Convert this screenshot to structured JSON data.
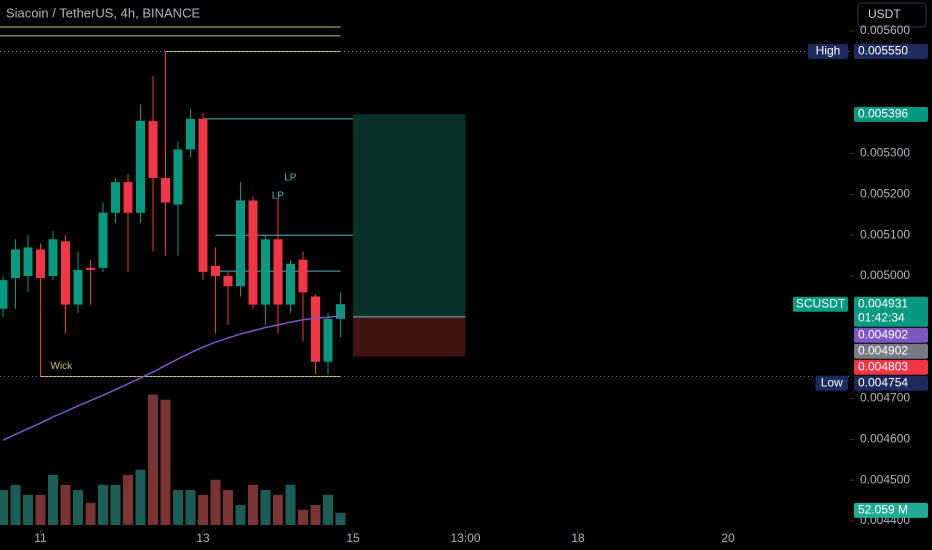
{
  "chart_data": {
    "type": "candlestick",
    "title": "Siacoin / TetherUS, 4h, BINANCE",
    "currency": "USDT",
    "x": [
      0,
      1,
      2,
      3,
      4,
      5,
      6,
      7,
      8,
      9,
      10,
      11,
      12,
      13,
      14,
      15,
      16,
      17,
      18,
      19,
      20,
      21,
      22,
      23,
      24,
      25,
      26,
      27
    ],
    "open": [
      0.00492,
      0.004995,
      0.005,
      0.005065,
      0.005,
      0.005085,
      0.00493,
      0.00502,
      0.00502,
      0.005155,
      0.00523,
      0.005155,
      0.00538,
      0.00524,
      0.005175,
      0.00531,
      0.005385,
      0.005025,
      0.005,
      0.004975,
      0.005185,
      0.00493,
      0.00509,
      0.00493,
      0.00504,
      0.00495,
      0.00479,
      0.004895
    ],
    "high": [
      0.005,
      0.00509,
      0.0051,
      0.00508,
      0.00511,
      0.0051,
      0.00506,
      0.00504,
      0.00518,
      0.00524,
      0.00525,
      0.00542,
      0.00549,
      0.00555,
      0.00533,
      0.00541,
      0.0054,
      0.00507,
      0.00501,
      0.00523,
      0.005195,
      0.0051,
      0.00519,
      0.00504,
      0.00506,
      0.004955,
      0.00491,
      0.00496
    ],
    "low": [
      0.0049,
      0.00492,
      0.00496,
      0.004754,
      0.00499,
      0.00486,
      0.00491,
      0.00493,
      0.00501,
      0.00513,
      0.00501,
      0.00513,
      0.00506,
      0.00505,
      0.00505,
      0.00529,
      0.00499,
      0.00486,
      0.00488,
      0.00495,
      0.00492,
      0.00488,
      0.00486,
      0.00491,
      0.00484,
      0.00476,
      0.00476,
      0.00485
    ],
    "close": [
      0.00499,
      0.005065,
      0.00507,
      0.004995,
      0.00509,
      0.00493,
      0.005015,
      0.005015,
      0.005155,
      0.00523,
      0.005155,
      0.00538,
      0.00524,
      0.00518,
      0.00531,
      0.005385,
      0.00501,
      0.005,
      0.004975,
      0.005185,
      0.00493,
      0.00509,
      0.00493,
      0.00503,
      0.00496,
      0.00479,
      0.004895,
      0.004931
    ],
    "up_color": "#089981",
    "down_color": "#f23645",
    "ma": {
      "color": "#7e57c2",
      "values": [
        0.004598,
        0.004612,
        0.004626,
        0.00464,
        0.004655,
        0.004668,
        0.004682,
        0.004695,
        0.004708,
        0.004722,
        0.004736,
        0.00475,
        0.004765,
        0.004781,
        0.004797,
        0.004812,
        0.004826,
        0.004838,
        0.004848,
        0.004858,
        0.004866,
        0.004874,
        0.00488,
        0.004887,
        0.004893,
        0.004897,
        0.004899,
        0.004902
      ]
    },
    "volume": {
      "values": [
        150,
        172,
        129,
        129,
        215,
        172,
        150,
        95,
        172,
        172,
        215,
        237,
        559,
        537,
        150,
        150,
        129,
        194,
        150,
        86,
        172,
        150,
        129,
        172,
        65,
        86,
        129,
        52.059
      ],
      "vlim": [
        0,
        600
      ],
      "last_label": "52.059 M",
      "up_color": "#1b5e57",
      "down_color": "#7a3434",
      "label_color": "#22ab94"
    },
    "xlim": [
      -0.24,
      67.76
    ],
    "xticks": [
      {
        "value": 3,
        "label": "11"
      },
      {
        "value": 16,
        "label": "13"
      },
      {
        "value": 28,
        "label": "15"
      },
      {
        "value": 37,
        "label": "13:00"
      },
      {
        "value": 46,
        "label": "18"
      },
      {
        "value": 58,
        "label": "20"
      }
    ],
    "ylim": [
      0.004378,
      0.005676
    ],
    "yticks": [
      {
        "value": 0.0056,
        "label": "0.005600"
      },
      {
        "value": 0.0053,
        "label": "0.005300"
      },
      {
        "value": 0.0052,
        "label": "0.005200"
      },
      {
        "value": 0.0051,
        "label": "0.005100"
      },
      {
        "value": 0.005,
        "label": "0.005000"
      },
      {
        "value": 0.0047,
        "label": "0.004700"
      },
      {
        "value": 0.0046,
        "label": "0.004600"
      },
      {
        "value": 0.0045,
        "label": "0.004500"
      },
      {
        "value": 0.0044,
        "label": "0.004400"
      }
    ],
    "levels": [
      {
        "value": 0.00561,
        "x": [
          -0.24,
          27
        ],
        "color": "#c9c66a"
      },
      {
        "value": 0.005588,
        "x": [
          -0.24,
          27
        ],
        "color": "#c9c66a"
      },
      {
        "value": 0.00555,
        "x": [
          13,
          27
        ],
        "color": "#c9c66a"
      },
      {
        "value": 0.005385,
        "x": [
          16,
          28
        ],
        "color": "#4fb5c4"
      },
      {
        "value": 0.0051,
        "x": [
          17,
          28
        ],
        "color": "#4fb5c4"
      },
      {
        "value": 0.005012,
        "x": [
          17,
          27
        ],
        "color": "#4fb5c4"
      },
      {
        "value": 0.004754,
        "x": [
          3,
          27
        ],
        "color": "#c9c66a"
      }
    ],
    "position": {
      "x": [
        28,
        37
      ],
      "target": 0.005396,
      "entry": 0.0049,
      "stop": 0.004803
    },
    "annotations": [
      {
        "text": "LP",
        "x": 22.5,
        "y": 0.00524,
        "color": "#4fb5c4"
      },
      {
        "text": "LP",
        "x": 21.5,
        "y": 0.005196,
        "color": "#4fb5c4"
      },
      {
        "text": "Wick",
        "x": 3.8,
        "y": 0.004779,
        "color": "#c9c66a"
      }
    ],
    "tags": [
      {
        "name": "High",
        "value": {
          "value": 0.00555,
          "label": "0.005550"
        },
        "color": "#1c2a5e",
        "dotted": true
      },
      {
        "value": 0.005396,
        "color": "#089981"
      },
      {
        "name": "SCUSDT",
        "value": 0.004931,
        "countdown": "01:42:34",
        "color": "#089981"
      },
      {
        "value": 0.004902,
        "color": "#7e57c2"
      },
      {
        "value": 0.004902,
        "color": "#787b86"
      },
      {
        "value": 0.004803,
        "color": "#f23645"
      },
      {
        "name": "Low",
        "value": 0.004754,
        "color": "#1c2a5e",
        "dotted": true
      }
    ]
  }
}
